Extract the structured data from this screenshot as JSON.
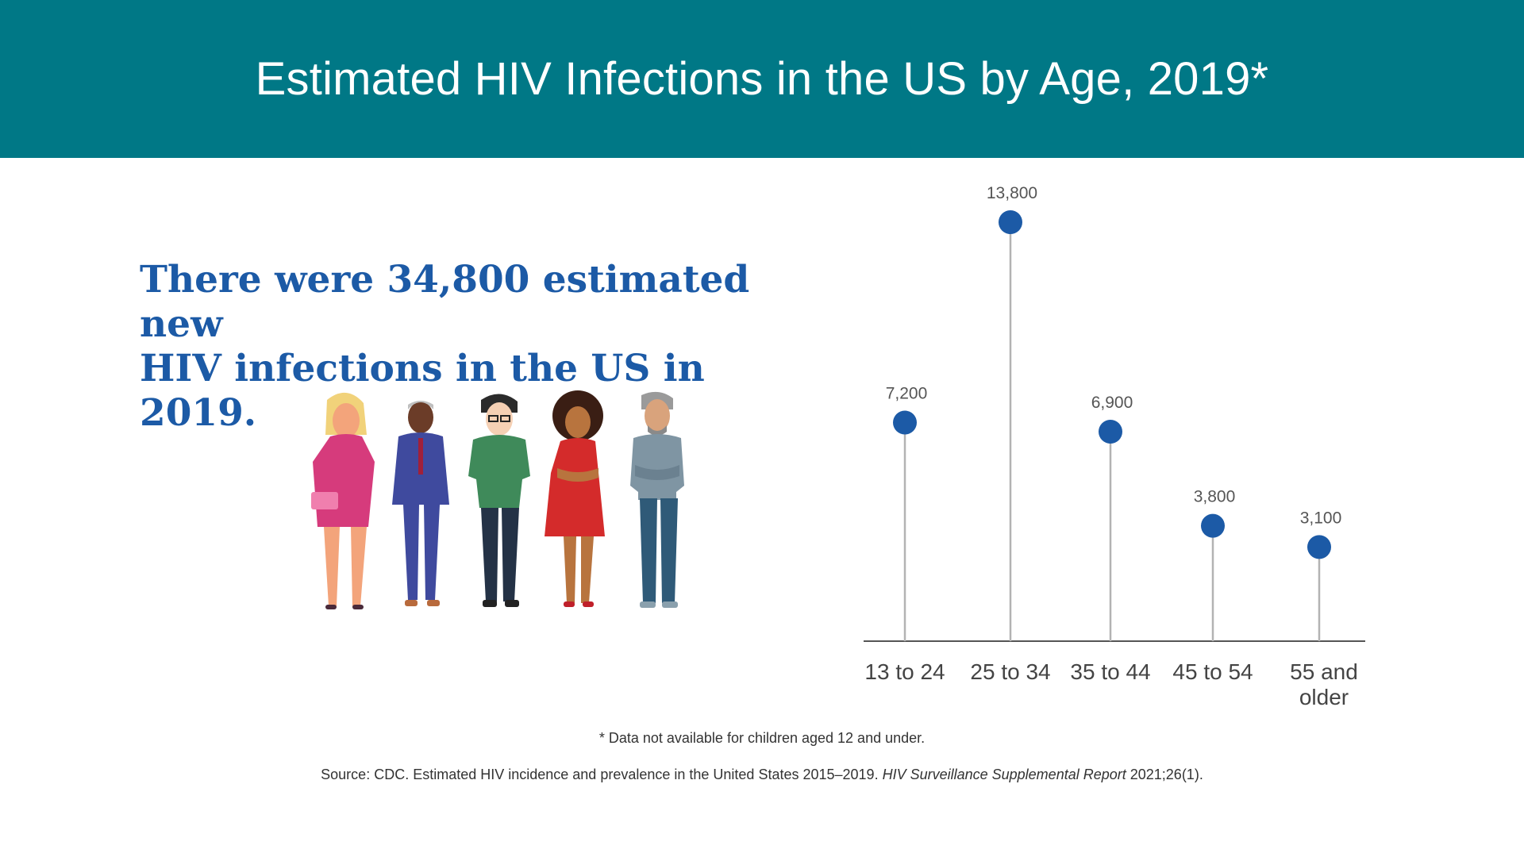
{
  "header": {
    "title": "Estimated HIV Infections in the US by Age, 2019*"
  },
  "headline": {
    "line1": "There were 34,800 estimated new",
    "line2": "HIV infections in the US in 2019."
  },
  "illustration": {
    "icon": "people-group-illustration"
  },
  "colors": {
    "header_bg": "#007886",
    "headline": "#1c5aa6",
    "dot": "#1c5aa6",
    "stem": "#b3b3b3",
    "axis": "#555555"
  },
  "chart_data": {
    "type": "lollipop",
    "title": "",
    "xlabel": "",
    "ylabel": "",
    "categories": [
      [
        "13 to 24"
      ],
      [
        "25 to 34"
      ],
      [
        "35 to 44"
      ],
      [
        "45 to 54"
      ],
      [
        "55 and",
        "older"
      ]
    ],
    "values": [
      7200,
      13800,
      6900,
      3800,
      3100
    ],
    "value_labels": [
      "7,200",
      "13,800",
      "6,900",
      "3,800",
      "3,100"
    ],
    "ylim": [
      0,
      13800
    ],
    "grid": false
  },
  "footnote": "* Data not available for children aged 12 and under.",
  "source": {
    "prefix": "Source: CDC. Estimated HIV incidence and prevalence in the United States 2015–2019. ",
    "italic": "HIV Surveillance Supplemental Report",
    "suffix": " 2021;26(1)."
  }
}
